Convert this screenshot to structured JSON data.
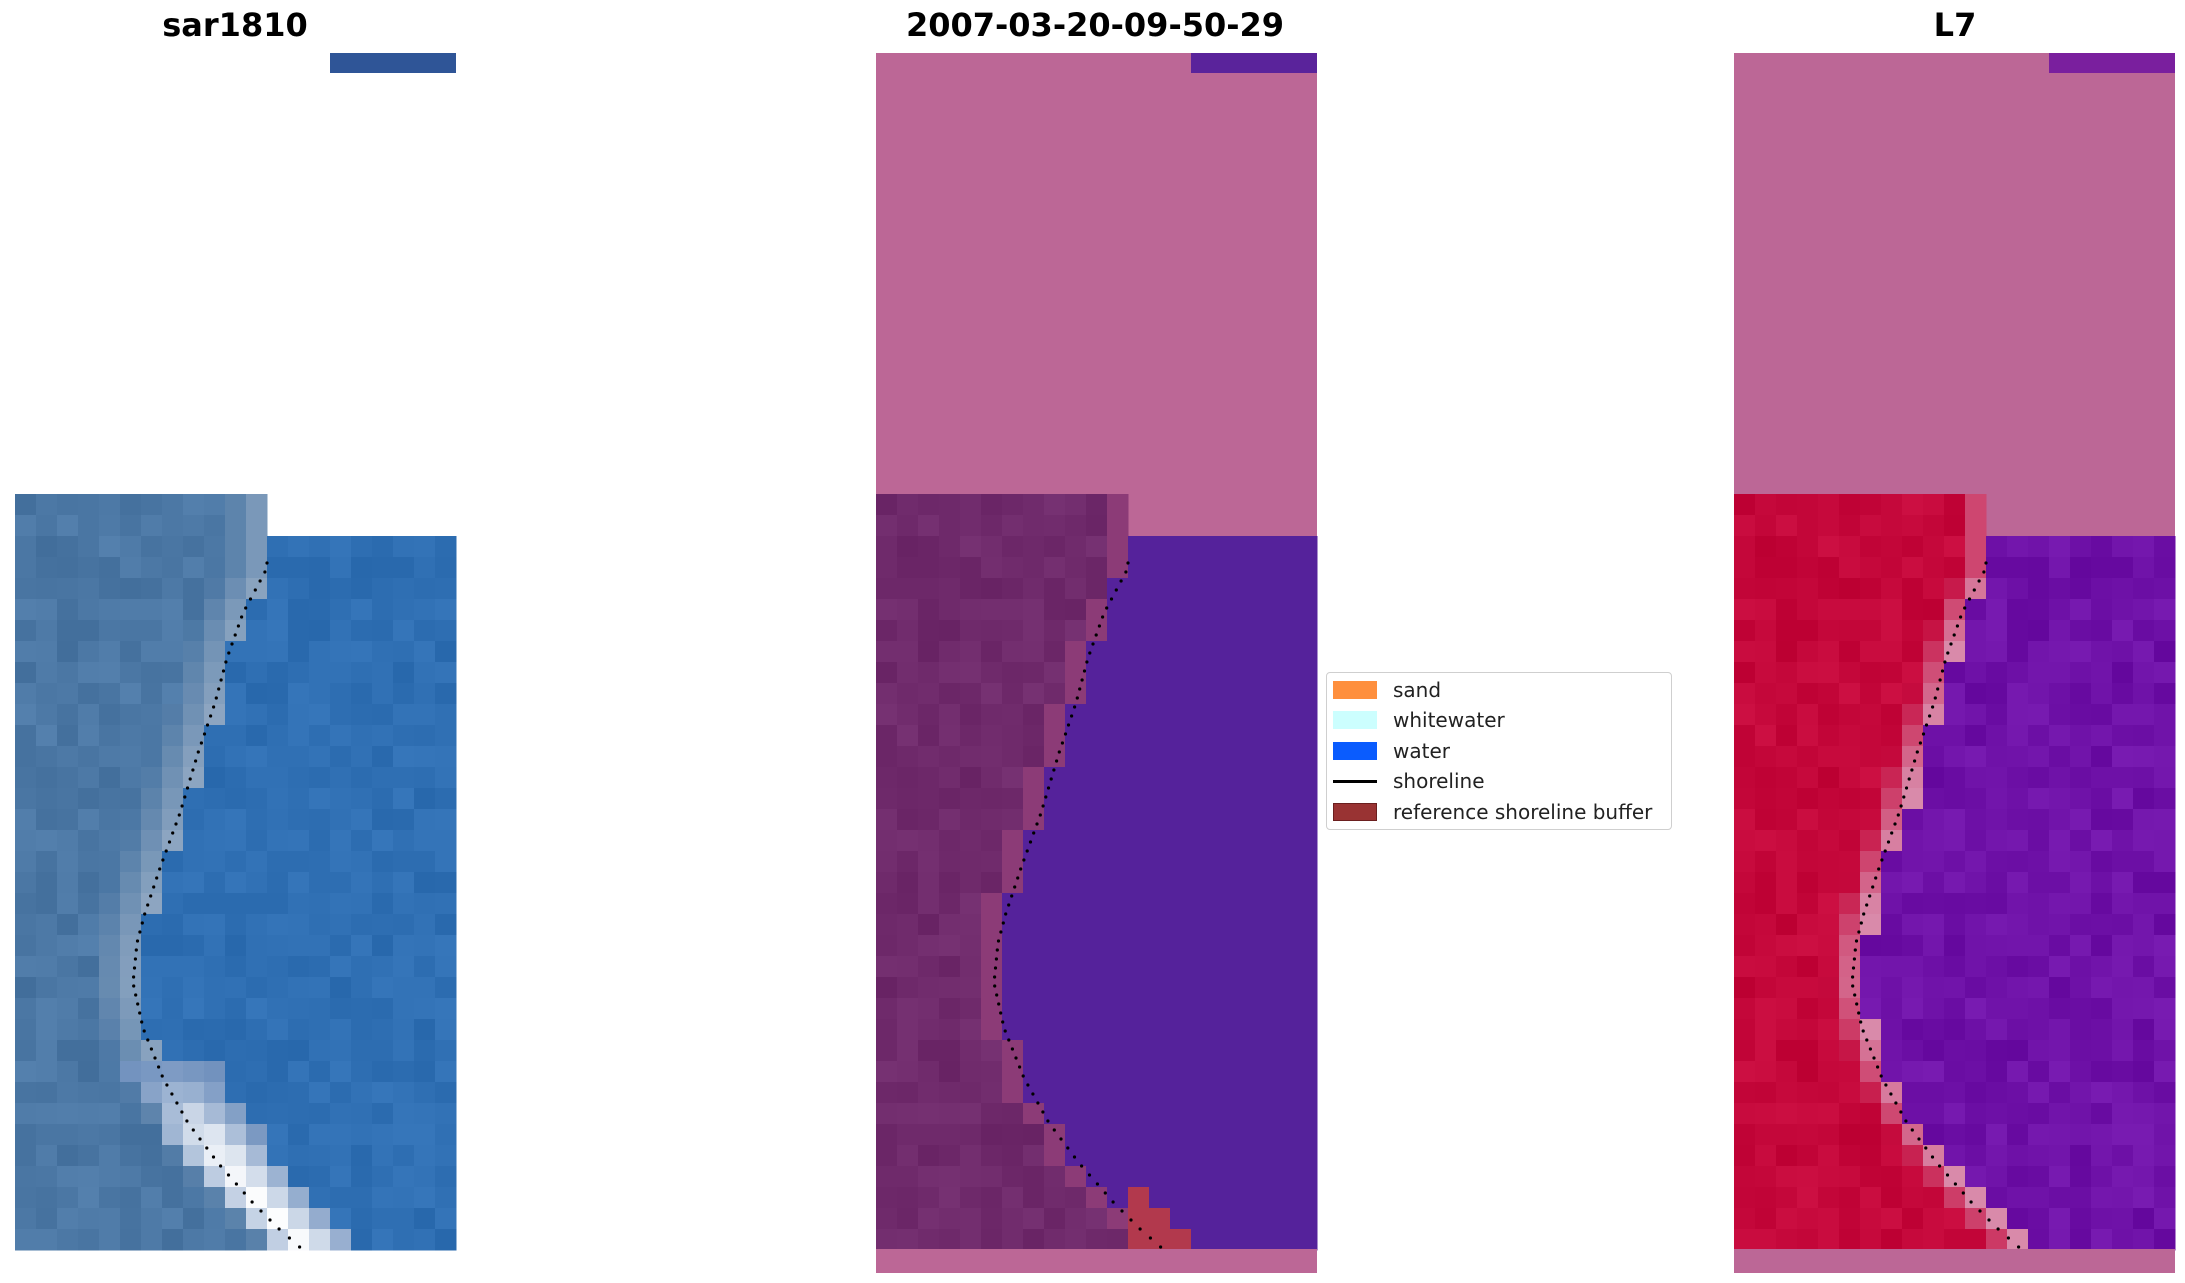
{
  "panels": [
    {
      "id": "rgb",
      "title": "sar1810"
    },
    {
      "id": "classified",
      "title": "2007-03-20-09-50-29"
    },
    {
      "id": "mndwi",
      "title": "L7"
    }
  ],
  "legend": {
    "items": [
      {
        "label": "sand",
        "kind": "patch",
        "color": "#fe8f3d"
      },
      {
        "label": "whitewater",
        "kind": "patch",
        "color": "#ccfefe"
      },
      {
        "label": "water",
        "kind": "patch",
        "color": "#0a5cfe"
      },
      {
        "label": "shoreline",
        "kind": "line",
        "color": "#000000"
      },
      {
        "label": "reference shoreline buffer",
        "kind": "patch",
        "color": "#993333"
      }
    ]
  },
  "colors": {
    "nodata_mask": "#bc6796",
    "rgb_land": "#4b77a4",
    "rgb_water": "#2f6fb3",
    "rgb_whitewater": "#ffffff",
    "class_land": "#6f2a6b",
    "class_water": "#55229b",
    "class_buffer": "#b2394d",
    "index_land": "#c4073a",
    "index_water": "#6e11a7",
    "index_shore": "#d98aaa",
    "shoreline": "#000000"
  }
}
